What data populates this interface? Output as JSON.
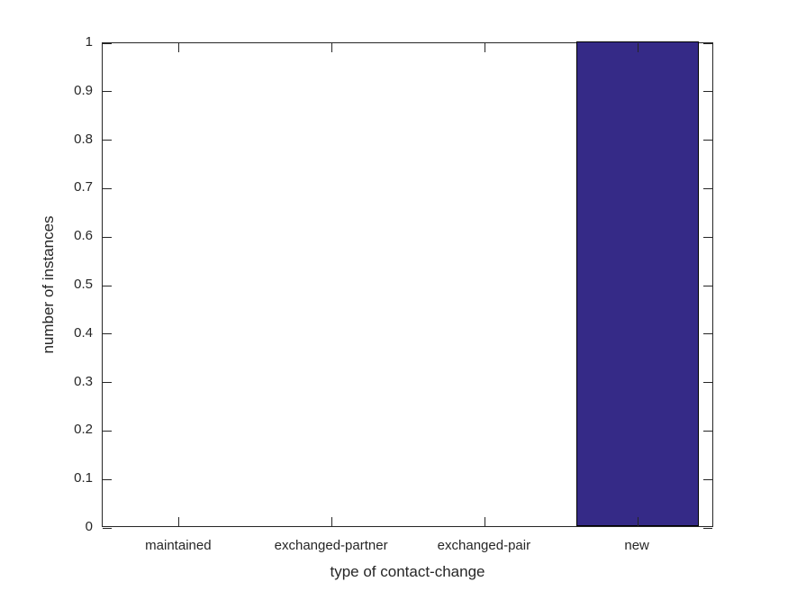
{
  "figure": {
    "background": "#ffffff",
    "axis_color": "#262626",
    "text_color": "#262626"
  },
  "chart_data": {
    "type": "bar",
    "categories": [
      "maintained",
      "exchanged-partner",
      "exchanged-pair",
      "new"
    ],
    "values": [
      0,
      0,
      0,
      1
    ],
    "title": "",
    "xlabel": "type of contact-change",
    "ylabel": "number of instances",
    "ylim": [
      0,
      1
    ],
    "yticks": [
      0,
      0.1,
      0.2,
      0.3,
      0.4,
      0.5,
      0.6,
      0.7,
      0.8,
      0.9,
      1
    ],
    "ytick_labels": [
      "0",
      "0.1",
      "0.2",
      "0.3",
      "0.4",
      "0.5",
      "0.6",
      "0.7",
      "0.8",
      "0.9",
      "1"
    ],
    "bar_width_fraction": 0.8,
    "bar_fill": "#352A87",
    "bar_edge": "#000000",
    "grid": false,
    "legend": null,
    "tick_direction": "in"
  }
}
